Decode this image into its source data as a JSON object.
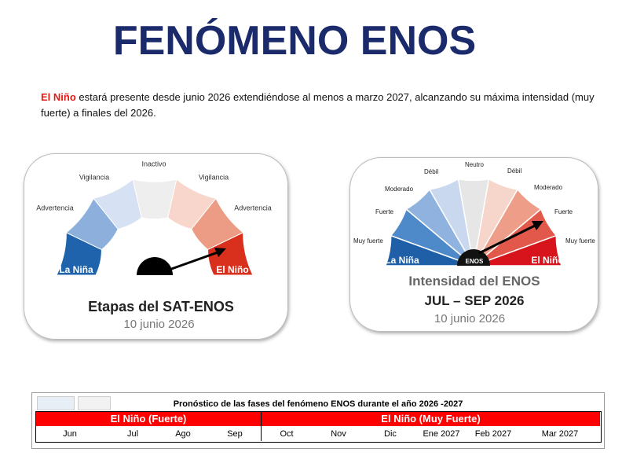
{
  "header": {
    "title": "FENÓMENO ENOS"
  },
  "intro": {
    "highlight": "El Niño",
    "text": " estará presente desde junio 2026 extendiéndose al menos a marzo 2027, alcanzando su máxima intensidad (muy fuerte) a finales del 2026."
  },
  "stages_gauge": {
    "labels": [
      "Advertencia",
      "Vigilancia",
      "Inactivo",
      "Vigilancia",
      "Advertencia"
    ],
    "left": "La Niña",
    "right": "El Niño",
    "caption": "Etapas del SAT-ENOS",
    "date": "10 junio 2026"
  },
  "intensity_gauge": {
    "labels": [
      "Muy fuerte",
      "Fuerte",
      "Moderado",
      "Débil",
      "Neutro",
      "Débil",
      "Moderado",
      "Fuerte",
      "Muy fuerte"
    ],
    "left": "La Niña",
    "center": "ENOS",
    "right": "El Niño",
    "caption": "Intensidad del ENOS",
    "period": "JUL – SEP 2026",
    "date": "10 junio 2026"
  },
  "forecast_table": {
    "title": "Pronóstico de las fases del fenómeno ENOS durante el año 2026 -2027",
    "phases": [
      "El Niño (Fuerte)",
      "El Niño (Muy Fuerte)"
    ],
    "months": [
      "Jun",
      "Jul",
      "Ago",
      "Sep",
      "Oct",
      "Nov",
      "Dic",
      "Ene 2027",
      "Feb 2027",
      "Mar 2027"
    ]
  }
}
